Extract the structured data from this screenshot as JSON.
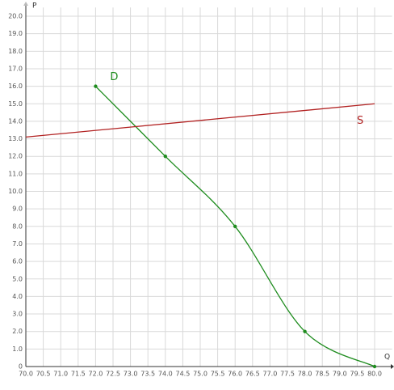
{
  "chart_data": {
    "type": "line",
    "x_label": "Q",
    "y_label": "P",
    "xlim": [
      70,
      80.5
    ],
    "ylim": [
      0,
      20.5
    ],
    "xticks": [
      {
        "value": 70,
        "label": "70.0"
      },
      {
        "value": 70.5,
        "label": "70.5"
      },
      {
        "value": 71,
        "label": "71.0"
      },
      {
        "value": 71.5,
        "label": "71.5"
      },
      {
        "value": 72,
        "label": "72.0"
      },
      {
        "value": 72.5,
        "label": "72.5"
      },
      {
        "value": 73,
        "label": "73.0"
      },
      {
        "value": 73.5,
        "label": "73.5"
      },
      {
        "value": 74,
        "label": "74.0"
      },
      {
        "value": 74.5,
        "label": "74.5"
      },
      {
        "value": 75,
        "label": "75.0"
      },
      {
        "value": 75.5,
        "label": "75.5"
      },
      {
        "value": 76,
        "label": "76.0"
      },
      {
        "value": 76.5,
        "label": "76.5"
      },
      {
        "value": 77,
        "label": "77.0"
      },
      {
        "value": 77.5,
        "label": "77.5"
      },
      {
        "value": 78,
        "label": "78.0"
      },
      {
        "value": 78.5,
        "label": "78.5"
      },
      {
        "value": 79,
        "label": "79.0"
      },
      {
        "value": 79.5,
        "label": "79.5"
      },
      {
        "value": 80,
        "label": "80.0"
      }
    ],
    "yticks": [
      0,
      {
        "value": 1,
        "label": "1.0"
      },
      {
        "value": 2,
        "label": "2.0"
      },
      {
        "value": 3,
        "label": "3.0"
      },
      {
        "value": 4,
        "label": "4.0"
      },
      {
        "value": 5,
        "label": "5.0"
      },
      {
        "value": 6,
        "label": "6.0"
      },
      {
        "value": 7,
        "label": "7.0"
      },
      {
        "value": 8,
        "label": "8.0"
      },
      {
        "value": 9,
        "label": "9.0"
      },
      {
        "value": 10,
        "label": "10.0"
      },
      {
        "value": 11,
        "label": "11.0"
      },
      {
        "value": 12,
        "label": "12.0"
      },
      {
        "value": 13,
        "label": "13.0"
      },
      {
        "value": 14,
        "label": "14.0"
      },
      {
        "value": 15,
        "label": "15.0"
      },
      {
        "value": 16,
        "label": "16.0"
      },
      {
        "value": 17,
        "label": "17.0"
      },
      {
        "value": 18,
        "label": "18.0"
      },
      {
        "value": 19,
        "label": "19.0"
      },
      {
        "value": 20,
        "label": "20.0"
      }
    ],
    "grid": true,
    "series": [
      {
        "name": "D",
        "color": "#1e8c1e",
        "x": [
          72,
          74,
          76,
          78,
          80
        ],
        "values": [
          16,
          12,
          8,
          2,
          0
        ],
        "smooth": true,
        "markers": true
      },
      {
        "name": "S",
        "color": "#b22222",
        "x": [
          70,
          80
        ],
        "values": [
          13.1,
          15.0
        ],
        "smooth": false,
        "markers": false
      }
    ]
  }
}
